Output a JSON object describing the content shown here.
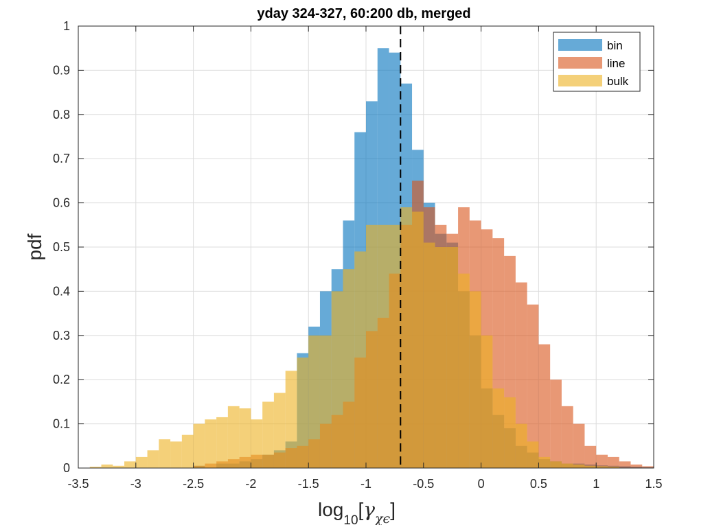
{
  "chart_data": {
    "type": "bar",
    "title": "yday 324-327, 60:200 db, merged",
    "xlabel": "log",
    "xlabel_sub": "10",
    "xlabel_bracket_open": "[",
    "xlabel_gamma": "γ",
    "xlabel_gamma_sub": "χϵ",
    "xlabel_bracket_close": "]",
    "ylabel": "pdf",
    "xlim": [
      -3.5,
      1.5
    ],
    "ylim": [
      0,
      1
    ],
    "xticks": [
      "-3.5",
      "-3",
      "-2.5",
      "-2",
      "-1.5",
      "-1",
      "-0.5",
      "0",
      "0.5",
      "1",
      "1.5"
    ],
    "yticks": [
      "0",
      "0.1",
      "0.2",
      "0.3",
      "0.4",
      "0.5",
      "0.6",
      "0.7",
      "0.8",
      "0.9",
      "1"
    ],
    "grid": true,
    "legend_position": "top-right",
    "bin_width": 0.1,
    "vline_x": -0.7,
    "series": [
      {
        "name": "bin",
        "color": "#0072BD",
        "bins": [
          [
            -2.5,
            0.005
          ],
          [
            -2.3,
            0.01
          ],
          [
            -2.2,
            0.01
          ],
          [
            -2.1,
            0.015
          ],
          [
            -2.0,
            0.02
          ],
          [
            -1.9,
            0.03
          ],
          [
            -1.8,
            0.04
          ],
          [
            -1.7,
            0.06
          ],
          [
            -1.6,
            0.26
          ],
          [
            -1.5,
            0.32
          ],
          [
            -1.4,
            0.4
          ],
          [
            -1.3,
            0.45
          ],
          [
            -1.2,
            0.56
          ],
          [
            -1.1,
            0.76
          ],
          [
            -1.0,
            0.83
          ],
          [
            -0.9,
            0.95
          ],
          [
            -0.8,
            0.94
          ],
          [
            -0.7,
            0.87
          ],
          [
            -0.6,
            0.72
          ],
          [
            -0.5,
            0.6
          ],
          [
            -0.4,
            0.53
          ],
          [
            -0.3,
            0.51
          ],
          [
            -0.2,
            0.4
          ],
          [
            -0.1,
            0.3
          ],
          [
            0.0,
            0.18
          ],
          [
            0.1,
            0.12
          ],
          [
            0.2,
            0.09
          ],
          [
            0.3,
            0.05
          ],
          [
            0.4,
            0.035
          ],
          [
            0.5,
            0.02
          ],
          [
            0.6,
            0.015
          ],
          [
            0.7,
            0.01
          ],
          [
            0.8,
            0.01
          ],
          [
            0.9,
            0.008
          ],
          [
            1.0,
            0.006
          ],
          [
            1.1,
            0.005
          ],
          [
            1.2,
            0.004
          ],
          [
            1.3,
            0.003
          ],
          [
            1.4,
            0.002
          ]
        ]
      },
      {
        "name": "line",
        "color": "#D95319",
        "bins": [
          [
            -2.5,
            0.005
          ],
          [
            -2.4,
            0.01
          ],
          [
            -2.3,
            0.015
          ],
          [
            -2.2,
            0.02
          ],
          [
            -2.1,
            0.025
          ],
          [
            -2.0,
            0.03
          ],
          [
            -1.9,
            0.03
          ],
          [
            -1.8,
            0.035
          ],
          [
            -1.7,
            0.045
          ],
          [
            -1.6,
            0.05
          ],
          [
            -1.5,
            0.065
          ],
          [
            -1.4,
            0.1
          ],
          [
            -1.3,
            0.12
          ],
          [
            -1.2,
            0.15
          ],
          [
            -1.1,
            0.25
          ],
          [
            -1.0,
            0.31
          ],
          [
            -0.9,
            0.34
          ],
          [
            -0.8,
            0.44
          ],
          [
            -0.7,
            0.55
          ],
          [
            -0.6,
            0.65
          ],
          [
            -0.5,
            0.59
          ],
          [
            -0.4,
            0.55
          ],
          [
            -0.3,
            0.53
          ],
          [
            -0.2,
            0.59
          ],
          [
            -0.1,
            0.56
          ],
          [
            0.0,
            0.54
          ],
          [
            0.1,
            0.52
          ],
          [
            0.2,
            0.48
          ],
          [
            0.3,
            0.42
          ],
          [
            0.4,
            0.37
          ],
          [
            0.5,
            0.28
          ],
          [
            0.6,
            0.2
          ],
          [
            0.7,
            0.14
          ],
          [
            0.8,
            0.1
          ],
          [
            0.9,
            0.05
          ],
          [
            1.0,
            0.03
          ],
          [
            1.1,
            0.025
          ],
          [
            1.2,
            0.015
          ],
          [
            1.3,
            0.008
          ],
          [
            1.4,
            0.004
          ]
        ]
      },
      {
        "name": "bulk",
        "color": "#EDB120",
        "bins": [
          [
            -3.4,
            0.003
          ],
          [
            -3.3,
            0.008
          ],
          [
            -3.2,
            0.005
          ],
          [
            -3.1,
            0.015
          ],
          [
            -3.0,
            0.025
          ],
          [
            -2.9,
            0.04
          ],
          [
            -2.8,
            0.065
          ],
          [
            -2.7,
            0.06
          ],
          [
            -2.6,
            0.075
          ],
          [
            -2.5,
            0.1
          ],
          [
            -2.4,
            0.11
          ],
          [
            -2.3,
            0.115
          ],
          [
            -2.2,
            0.14
          ],
          [
            -2.1,
            0.135
          ],
          [
            -2.0,
            0.11
          ],
          [
            -1.9,
            0.15
          ],
          [
            -1.8,
            0.17
          ],
          [
            -1.7,
            0.22
          ],
          [
            -1.6,
            0.25
          ],
          [
            -1.5,
            0.3
          ],
          [
            -1.4,
            0.3
          ],
          [
            -1.3,
            0.4
          ],
          [
            -1.2,
            0.45
          ],
          [
            -1.1,
            0.49
          ],
          [
            -1.0,
            0.55
          ],
          [
            -0.9,
            0.55
          ],
          [
            -0.8,
            0.55
          ],
          [
            -0.7,
            0.59
          ],
          [
            -0.6,
            0.58
          ],
          [
            -0.5,
            0.51
          ],
          [
            -0.4,
            0.5
          ],
          [
            -0.3,
            0.5
          ],
          [
            -0.2,
            0.44
          ],
          [
            -0.1,
            0.4
          ],
          [
            0.0,
            0.3
          ],
          [
            0.1,
            0.18
          ],
          [
            0.2,
            0.16
          ],
          [
            0.3,
            0.1
          ],
          [
            0.4,
            0.06
          ],
          [
            0.5,
            0.025
          ],
          [
            0.6,
            0.015
          ],
          [
            0.7,
            0.01
          ],
          [
            0.8,
            0.008
          ],
          [
            0.9,
            0.005
          ],
          [
            1.0,
            0.004
          ],
          [
            1.1,
            0.003
          ]
        ]
      }
    ]
  }
}
